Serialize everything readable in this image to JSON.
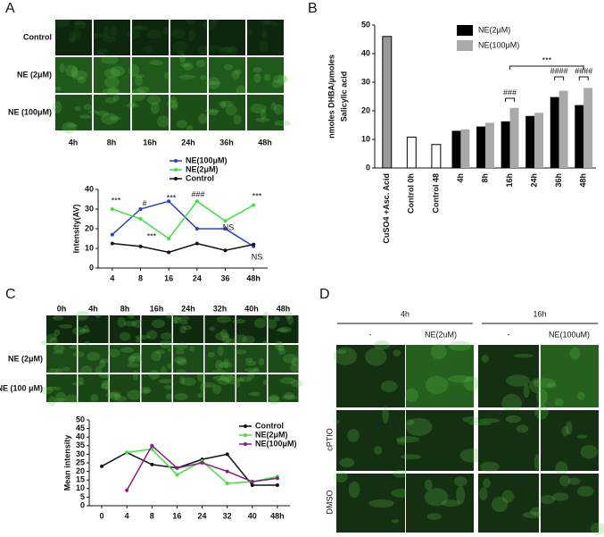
{
  "panels": {
    "letters": [
      "A",
      "B",
      "C",
      "D"
    ],
    "a_rows": [
      "Control",
      "NE (2μM)",
      "NE (100μM)"
    ],
    "a_cols": [
      "4h",
      "8h",
      "16h",
      "24h",
      "36h",
      "48h"
    ],
    "c_rows": [
      "NE (2μM)",
      "NE (100 μM)"
    ],
    "c_cols": [
      "0h",
      "4h",
      "8h",
      "16h",
      "24h",
      "32h",
      "40h",
      "48h"
    ],
    "d_times": [
      "4h",
      "16h"
    ],
    "d_cols": [
      "-",
      "NE(2uM)",
      "-",
      "NE(100uM)"
    ],
    "d_rows": [
      "cPTIO",
      "DMSO"
    ]
  },
  "chart_data": [
    {
      "type": "line",
      "ylabel": "Intensity(AV)",
      "categories": [
        "4",
        "8",
        "16",
        "24",
        "36",
        "48h"
      ],
      "ylim": [
        0,
        40
      ],
      "yticks": [
        0,
        10,
        20,
        30,
        40
      ],
      "series": [
        {
          "name": "NE(100μM)",
          "color": "#2b3fd6",
          "values": [
            17,
            30,
            34,
            20,
            20,
            11
          ]
        },
        {
          "name": "NE(2μM)",
          "color": "#3de33d",
          "values": [
            30,
            25,
            15,
            34,
            24,
            32
          ]
        },
        {
          "name": "Control",
          "color": "#111111",
          "values": [
            12.5,
            11,
            8,
            12.5,
            9,
            12
          ]
        }
      ],
      "annotations": [
        "***",
        "#",
        "***",
        "***",
        "###",
        "NS",
        "***",
        "NS"
      ]
    },
    {
      "type": "bar",
      "ylabel": [
        "nmoles DHBA/µmoles",
        "Salicylic acid"
      ],
      "categories": [
        "CuSO4 +Asc. Acid",
        "Control 0h",
        "Control 48",
        "4h",
        "8h",
        "16h",
        "24h",
        "36h",
        "48h"
      ],
      "control_values": [
        46,
        10.8,
        8.2
      ],
      "control_colors": [
        "#9a9a9a",
        "#ffffff",
        "#ffffff"
      ],
      "ylim": [
        0,
        50
      ],
      "yticks": [
        0,
        10,
        20,
        30,
        40,
        50
      ],
      "series": [
        {
          "name": "NE(2μM)",
          "color": "#000000",
          "values": [
            null,
            null,
            null,
            13,
            14.5,
            16.3,
            18.2,
            24.8,
            22
          ]
        },
        {
          "name": "NE(100μM)",
          "color": "#a9a9a9",
          "values": [
            null,
            null,
            null,
            13.5,
            15.8,
            21,
            19.3,
            27,
            28
          ]
        }
      ],
      "annotations": [
        "***",
        "###",
        "####",
        "####"
      ]
    },
    {
      "type": "line",
      "ylabel": "Mean intensity",
      "categories": [
        "0",
        "4",
        "8",
        "16",
        "24",
        "32",
        "40",
        "48h"
      ],
      "ylim": [
        0,
        50
      ],
      "yticks": [
        0,
        5,
        10,
        15,
        20,
        25,
        30,
        35,
        40,
        45,
        50
      ],
      "series": [
        {
          "name": "Control",
          "color": "#111111",
          "values": [
            23,
            31,
            24,
            22,
            27,
            30,
            12,
            12
          ]
        },
        {
          "name": "NE(2μM)",
          "color": "#3de33d",
          "values": [
            null,
            31,
            33,
            18,
            26,
            13,
            14,
            17
          ]
        },
        {
          "name": "NE(100μM)",
          "color": "#8b1a8b",
          "values": [
            null,
            9,
            35,
            22,
            25,
            20,
            14,
            16
          ]
        }
      ]
    }
  ]
}
